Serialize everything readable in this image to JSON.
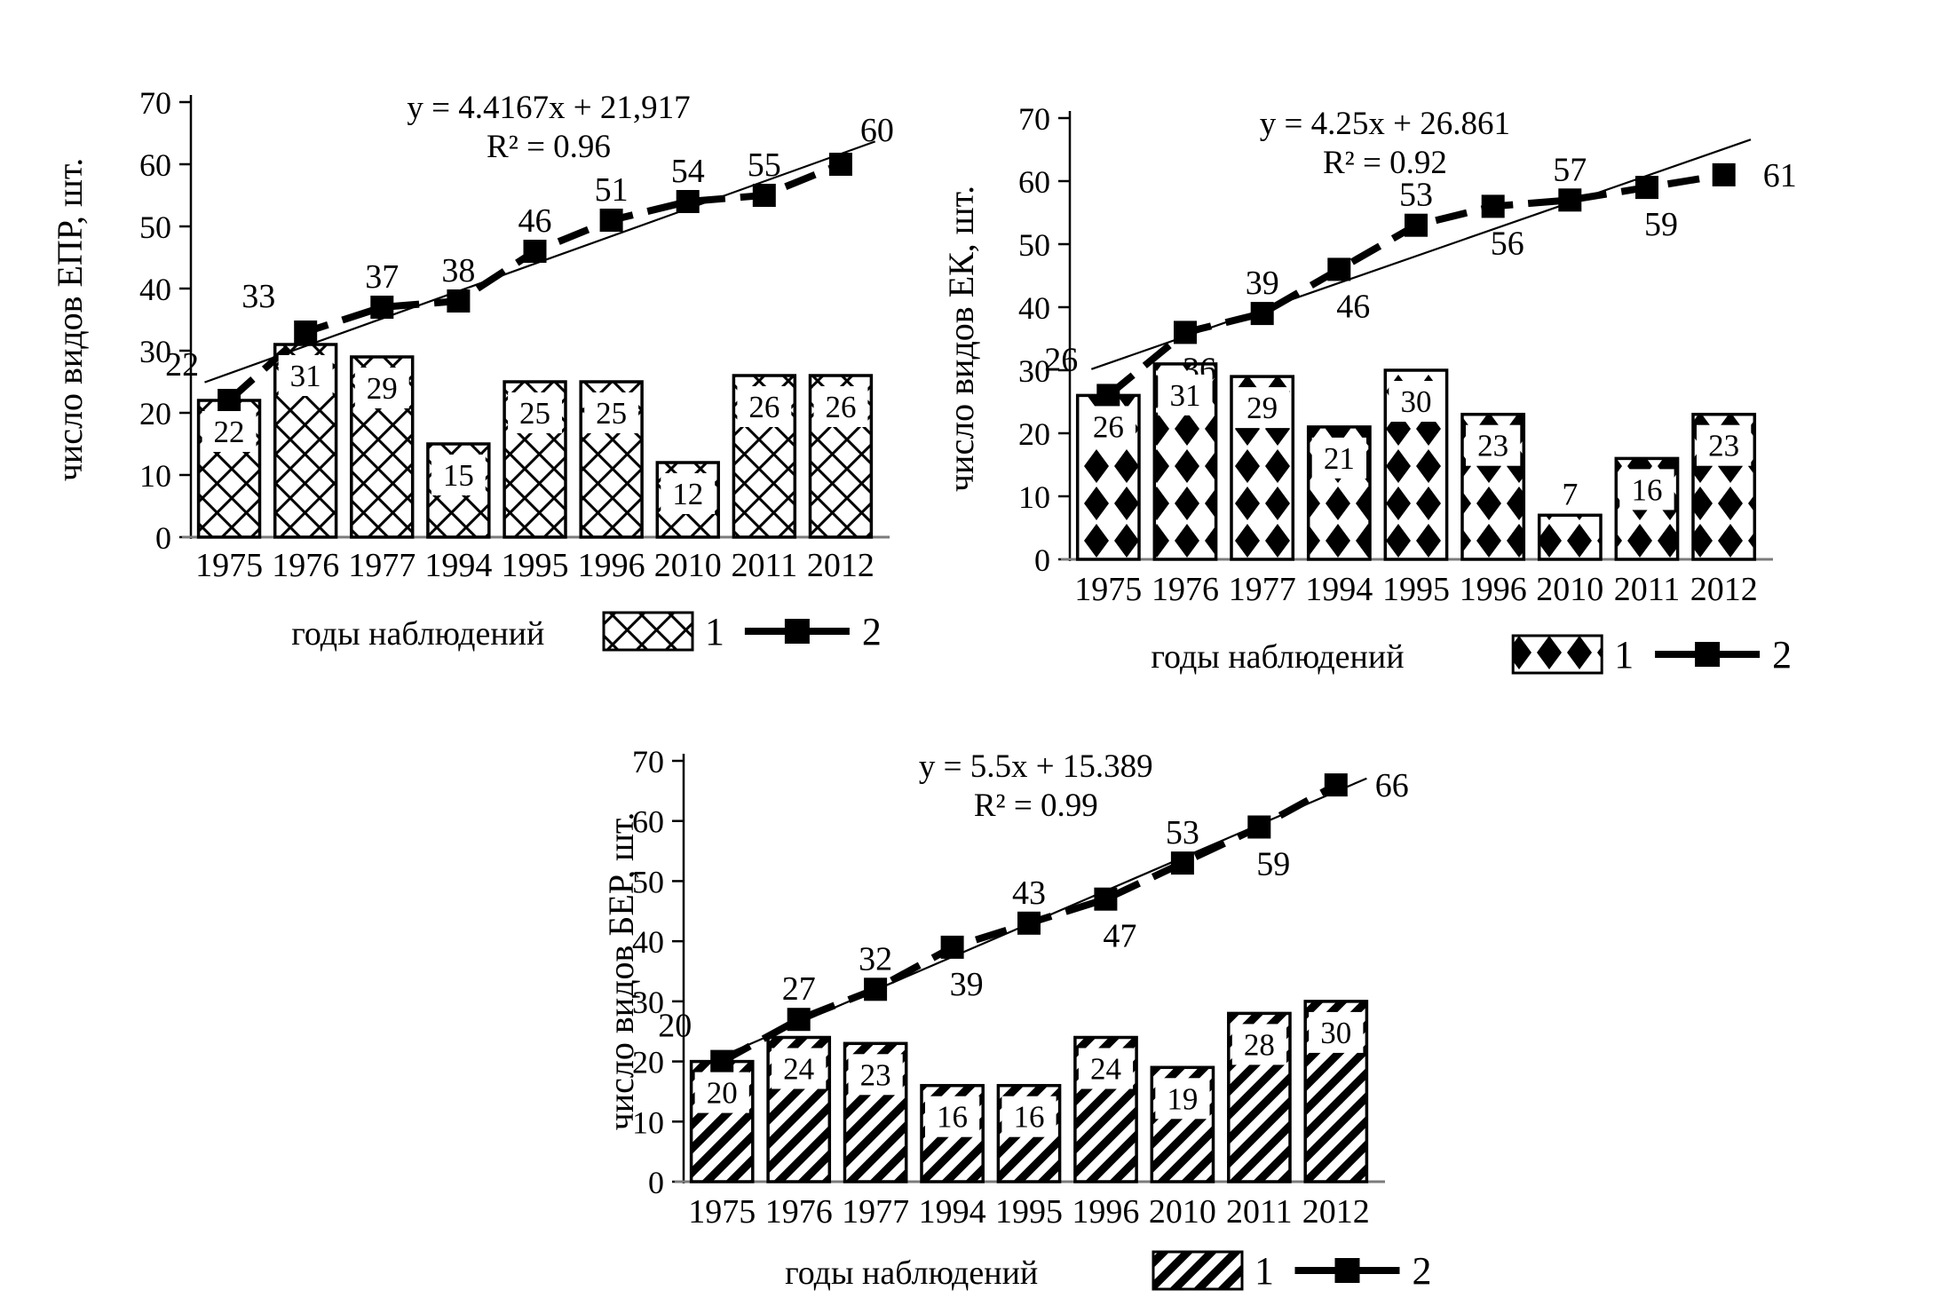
{
  "figure": {
    "background": "#ffffff",
    "colors": {
      "ink": "#000000",
      "baseline": "#7b7b7b",
      "label_box": "#ffffff"
    },
    "x_axis_title": "годы наблюдений",
    "legend": {
      "bar_series_label": "1",
      "line_series_label": "2"
    }
  },
  "chart_data": [
    {
      "type": "bar",
      "position": "top-left",
      "equation": "y = 4.4167x + 21,917",
      "r_squared": "R² = 0.96",
      "ylabel": "число видов ЕПР, шт.",
      "xlabel": "годы наблюдений",
      "categories": [
        "1975",
        "1976",
        "1977",
        "1994",
        "1995",
        "1996",
        "2010",
        "2011",
        "2012"
      ],
      "ylim": [
        0,
        70
      ],
      "yticks": [
        0,
        10,
        20,
        30,
        40,
        50,
        60,
        70
      ],
      "legend_entries": [
        "1",
        "2"
      ],
      "bar_pattern": "crosshatch",
      "series": [
        {
          "name": "1",
          "kind": "bar",
          "values": [
            22,
            31,
            29,
            15,
            25,
            25,
            12,
            26,
            26
          ]
        },
        {
          "name": "2",
          "kind": "line",
          "values": [
            22,
            33,
            37,
            38,
            46,
            51,
            54,
            55,
            60
          ],
          "label_positions": [
            "above-left",
            "above-left",
            "above",
            "above",
            "above",
            "above",
            "above",
            "above",
            "above-right"
          ]
        },
        {
          "name": "trend",
          "kind": "trendline",
          "slope": 4.4167,
          "intercept": 21.917,
          "x_start": 0.68,
          "x_end": 9.45
        }
      ]
    },
    {
      "type": "bar",
      "position": "top-right",
      "equation": "y = 4.25x + 26.861",
      "r_squared": "R² = 0.92",
      "ylabel": "число видов ЕК, шт.",
      "xlabel": "годы наблюдений",
      "categories": [
        "1975",
        "1976",
        "1977",
        "1994",
        "1995",
        "1996",
        "2010",
        "2011",
        "2012"
      ],
      "ylim": [
        0,
        70
      ],
      "yticks": [
        0,
        10,
        20,
        30,
        40,
        50,
        60,
        70
      ],
      "legend_entries": [
        "1",
        "2"
      ],
      "bar_pattern": "diamond",
      "series": [
        {
          "name": "1",
          "kind": "bar",
          "values": [
            26,
            31,
            29,
            21,
            30,
            23,
            7,
            16,
            23
          ]
        },
        {
          "name": "2",
          "kind": "line",
          "values": [
            26,
            36,
            39,
            46,
            53,
            56,
            57,
            59,
            61
          ],
          "label_positions": [
            "above-left",
            "below",
            "above",
            "below",
            "above",
            "below",
            "above",
            "below",
            "right"
          ]
        },
        {
          "name": "trend",
          "kind": "trendline",
          "slope": 4.25,
          "intercept": 26.861,
          "x_start": 0.78,
          "x_end": 9.35
        }
      ]
    },
    {
      "type": "bar",
      "position": "bottom-center",
      "equation": "y = 5.5x + 15.389",
      "r_squared": "R² = 0.99",
      "ylabel": "число видов БЕР, шт.",
      "xlabel": "годы наблюдений",
      "categories": [
        "1975",
        "1976",
        "1977",
        "1994",
        "1995",
        "1996",
        "2010",
        "2011",
        "2012"
      ],
      "ylim": [
        0,
        70
      ],
      "yticks": [
        0,
        10,
        20,
        30,
        40,
        50,
        60,
        70
      ],
      "legend_entries": [
        "1",
        "2"
      ],
      "bar_pattern": "diagonal",
      "series": [
        {
          "name": "1",
          "kind": "bar",
          "values": [
            20,
            24,
            23,
            16,
            16,
            24,
            19,
            28,
            30
          ]
        },
        {
          "name": "2",
          "kind": "line",
          "values": [
            20,
            27,
            32,
            39,
            43,
            47,
            53,
            59,
            66
          ],
          "label_positions": [
            "above-left",
            "above",
            "above",
            "below",
            "above",
            "below",
            "above",
            "below",
            "right"
          ]
        },
        {
          "name": "trend",
          "kind": "trendline",
          "slope": 5.5,
          "intercept": 15.389,
          "x_start": 0.7,
          "x_end": 9.4
        }
      ]
    }
  ]
}
